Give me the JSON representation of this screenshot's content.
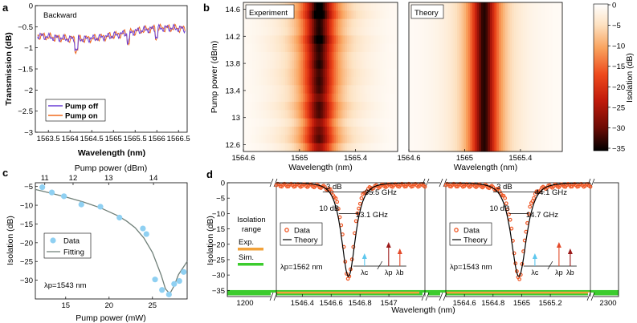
{
  "chart_data": [
    {
      "panel": "a",
      "type": "line",
      "title": "Backward",
      "xlabel": "Wavelength (nm)",
      "ylabel": "Transmission (dB)",
      "xlim": [
        1563.2,
        1566.7
      ],
      "ylim": [
        -3,
        0
      ],
      "xticks": [
        1563.5,
        1564,
        1564.5,
        1565,
        1565.5,
        1566,
        1566.5
      ],
      "yticks": [
        0,
        -0.5,
        -1,
        -1.5,
        -2,
        -2.5,
        -3
      ],
      "series": [
        {
          "name": "Pump off",
          "color": "#6a3fd6"
        },
        {
          "name": "Pump on",
          "color": "#f06a1e"
        }
      ]
    },
    {
      "panel": "b",
      "type": "heatmap",
      "subplots": [
        "Experiment",
        "Theory"
      ],
      "xlabel": "Wavelength (nm)",
      "ylabel": "Pump power (dBm)",
      "xlim": [
        1564.6,
        1565.7
      ],
      "ylim": [
        12.5,
        14.7
      ],
      "xticks": [
        1564.6,
        1565,
        1565.4
      ],
      "yticks": [
        12.6,
        13,
        13.4,
        13.8,
        14.2,
        14.6
      ],
      "colorbar": {
        "label": "Isolation (dB)",
        "ticks": [
          0,
          -5,
          -10,
          -15,
          -20,
          -25,
          -30,
          -35
        ],
        "range": [
          -35,
          0
        ]
      }
    },
    {
      "panel": "c",
      "type": "scatter",
      "xlabel": "Pump power (mW)",
      "x2label": "Pump power (dBm)",
      "ylabel": "Isolation (dB)",
      "xlim": [
        11.5,
        29
      ],
      "ylim": [
        -35,
        -4
      ],
      "xticks": [
        15,
        20,
        25
      ],
      "x2ticks": [
        11,
        12,
        13,
        14
      ],
      "yticks": [
        -5,
        -10,
        -15,
        -20,
        -25,
        -30
      ],
      "annotation": "λp=1543 nm",
      "series": [
        {
          "name": "Data",
          "color": "#8fd0f2",
          "x": [
            12.3,
            13.4,
            14.8,
            16.8,
            19.0,
            21.2,
            23.9,
            24.3,
            25.3,
            26.1,
            26.9,
            27.5,
            28.1,
            28.6
          ],
          "y": [
            -5.2,
            -6.6,
            -7.6,
            -9.8,
            -10.4,
            -13.3,
            -16.2,
            -17.7,
            -29.8,
            -32.6,
            -33.8,
            -31.0,
            -30.2,
            -27.8
          ]
        },
        {
          "name": "Fitting",
          "color": "#6f7f78",
          "x": [
            11.5,
            13,
            15,
            17,
            19,
            21,
            22,
            23,
            24,
            25,
            26,
            26.5,
            27,
            27.5,
            28,
            29
          ],
          "y": [
            -5.8,
            -6.6,
            -7.8,
            -9.1,
            -10.7,
            -12.8,
            -14.2,
            -16.0,
            -18.7,
            -22.6,
            -28.6,
            -32.3,
            -33.6,
            -31.5,
            -28.5,
            -25.0
          ]
        }
      ]
    },
    {
      "panel": "d",
      "type": "line",
      "xlabel": "Wavelength (nm)",
      "ylabel": "Isolation (dB)",
      "ylim": [
        -37,
        0
      ],
      "yticks": [
        0,
        -5,
        -10,
        -15,
        -20,
        -25,
        -30,
        -35
      ],
      "legend_box": {
        "title": "Isolation range",
        "entries": [
          {
            "name": "Exp.",
            "color": "#f2a23a"
          },
          {
            "name": "Sim.",
            "color": "#3ccc2e"
          }
        ]
      },
      "outer_ticks": [
        "1200",
        "2300"
      ],
      "insets": [
        {
          "xlim": [
            1546.22,
            1547.25
          ],
          "xticks": [
            1546.4,
            1546.6,
            1546.8,
            1547
          ],
          "dip": 1546.72,
          "annotations": [
            "3 dB",
            "10 dB",
            "35.5 GHz",
            "13.1 GHz",
            "λp=1562 nm"
          ],
          "pump_labels": [
            "λc",
            "λb",
            "λp"
          ],
          "series": [
            {
              "name": "Data",
              "color": "#f05a28"
            },
            {
              "name": "Theory",
              "color": "#000000"
            }
          ]
        },
        {
          "xlim": [
            1564.47,
            1565.48
          ],
          "xticks": [
            1564.6,
            1564.8,
            1565,
            1565.2
          ],
          "dip": 1564.98,
          "annotations": [
            "3 dB",
            "10 dB",
            "44.1 GHz",
            "14.7 GHz",
            "λp=1543 nm"
          ],
          "pump_labels": [
            "λc",
            "λp",
            "λb"
          ],
          "series": [
            {
              "name": "Data",
              "color": "#f05a28"
            },
            {
              "name": "Theory",
              "color": "#000000"
            }
          ]
        }
      ]
    }
  ],
  "panel_labels": [
    "a",
    "b",
    "c",
    "d"
  ]
}
